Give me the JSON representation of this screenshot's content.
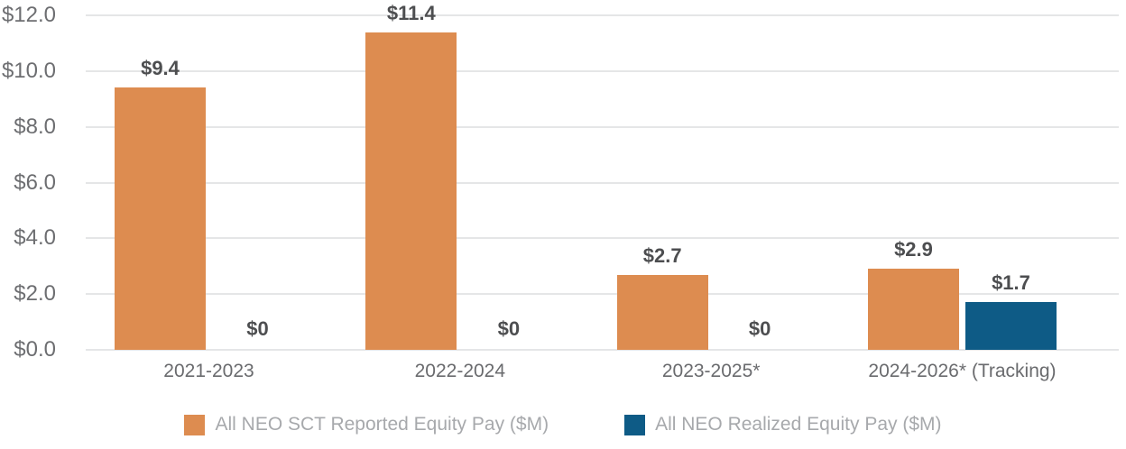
{
  "chart_data": {
    "type": "bar",
    "title": "",
    "categories": [
      "2021-2023",
      "2022-2024",
      "2023-2025*",
      "2024-2026* (Tracking)"
    ],
    "series": [
      {
        "name": "All NEO SCT Reported Equity Pay ($M)",
        "key": "sct-reported",
        "color": "#DD8C50",
        "values": [
          9.4,
          11.4,
          2.7,
          2.9
        ],
        "data_labels": [
          "$9.4",
          "$11.4",
          "$2.7",
          "$2.9"
        ]
      },
      {
        "name": "All NEO Realized Equity Pay ($M)",
        "key": "realized",
        "color": "#0E5B86",
        "values": [
          0,
          0,
          0,
          1.7
        ],
        "data_labels": [
          "$0",
          "$0",
          "$0",
          "$1.7"
        ]
      }
    ],
    "xlabel": "",
    "ylabel": "",
    "ylim": [
      0,
      12
    ],
    "ytick_values": [
      12,
      10,
      8,
      6,
      4,
      2,
      0
    ],
    "ytick_labels": [
      "$12.0",
      "$10.0",
      "$8.0",
      "$6.0",
      "$4.0",
      "$2.0",
      "$0.0"
    ],
    "grid": true,
    "legend_position": "bottom"
  },
  "style": {
    "bar_color_reported": "#DD8C50",
    "bar_color_realized": "#0E5B86",
    "gridline_color": "#E5E6E7",
    "axis_text_color": "#6D6E71",
    "data_label_color": "#4D4E50",
    "legend_text_color": "#A7A9AC",
    "background": "#FFFFFF"
  }
}
